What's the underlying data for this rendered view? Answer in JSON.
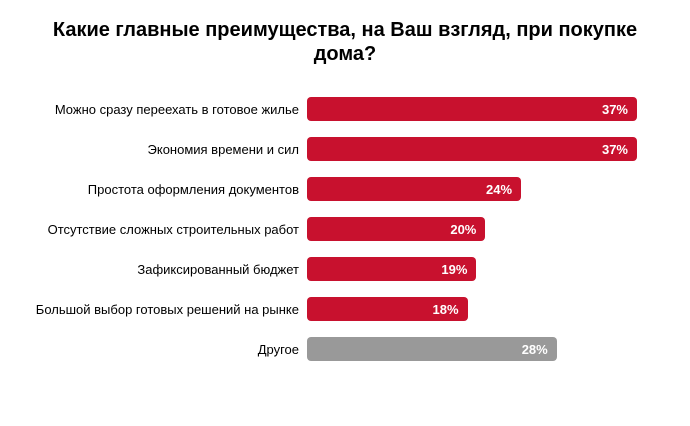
{
  "chart_data": {
    "type": "bar",
    "orientation": "horizontal",
    "title": "Какие главные преимущества, на Ваш взгляд, при покупке дома?",
    "categories": [
      "Можно сразу переехать в готовое жилье",
      "Экономия времени и сил",
      "Простота оформления документов",
      "Отсутствие сложных строительных работ",
      "Зафиксированный бюджет",
      "Большой выбор готовых решений на рынке",
      "Другое"
    ],
    "values": [
      37,
      37,
      24,
      20,
      19,
      18,
      28
    ],
    "value_labels": [
      "37%",
      "37%",
      "24%",
      "20%",
      "19%",
      "18%",
      "28%"
    ],
    "value_suffix": "%",
    "xlim": [
      0,
      37
    ],
    "grid": false,
    "legend": false,
    "bar_colors": [
      "#C8112E",
      "#C8112E",
      "#C8112E",
      "#C8112E",
      "#C8112E",
      "#C8112E",
      "#999999"
    ],
    "colors": {
      "primary_bar": "#C8112E",
      "other_bar": "#999999",
      "value_label_text": "#FFFFFF",
      "category_label_text": "#000000",
      "title_text": "#000000",
      "background": "#FFFFFF"
    }
  }
}
